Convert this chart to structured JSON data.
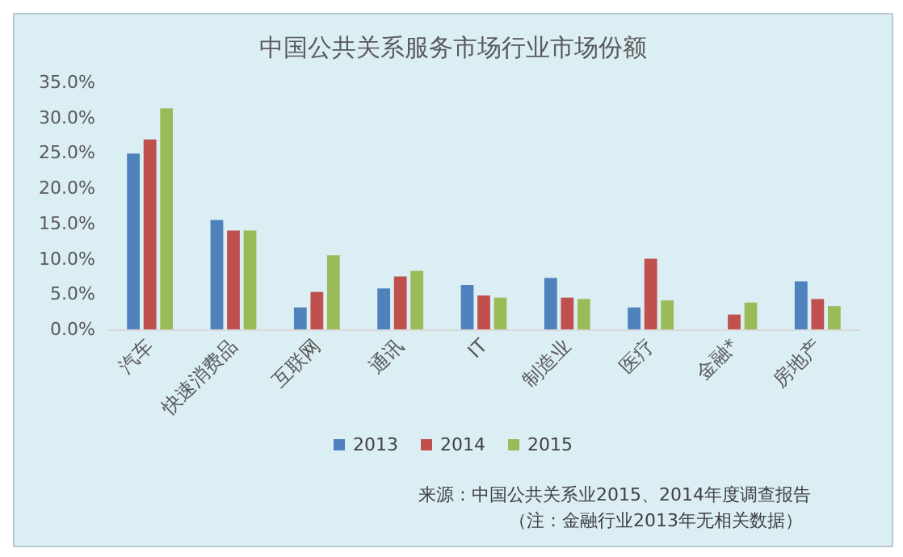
{
  "chart_data": {
    "type": "bar",
    "title": "中国公共关系服务市场行业市场份额",
    "categories": [
      "汽车",
      "快速消费品",
      "互联网",
      "通讯",
      "IT",
      "制造业",
      "医疗",
      "金融*",
      "房地产"
    ],
    "series": [
      {
        "name": "2013",
        "color": "#4f81bd",
        "values": [
          24.9,
          15.5,
          3.1,
          5.8,
          6.3,
          7.3,
          3.1,
          null,
          6.8
        ]
      },
      {
        "name": "2014",
        "color": "#c0504d",
        "values": [
          26.9,
          14.0,
          5.3,
          7.5,
          4.8,
          4.5,
          10.0,
          2.1,
          4.3
        ]
      },
      {
        "name": "2015",
        "color": "#9bbb59",
        "values": [
          31.3,
          14.0,
          10.5,
          8.3,
          4.5,
          4.3,
          4.1,
          3.8,
          3.3
        ]
      }
    ],
    "ylim": [
      0,
      35
    ],
    "yticks": [
      {
        "value": 0,
        "label": "0.0%"
      },
      {
        "value": 5,
        "label": "5.0%"
      },
      {
        "value": 10,
        "label": "10.0%"
      },
      {
        "value": 15,
        "label": "15.0%"
      },
      {
        "value": 20,
        "label": "20.0%"
      },
      {
        "value": 25,
        "label": "25.0%"
      },
      {
        "value": 30,
        "label": "30.0%"
      },
      {
        "value": 35,
        "label": "35.0%"
      }
    ],
    "grid": false,
    "legend": "bottom",
    "annotations": [
      "来源：中国公共关系业2015、2014年度调查报告",
      "（注：金融行业2013年无相关数据）"
    ]
  }
}
